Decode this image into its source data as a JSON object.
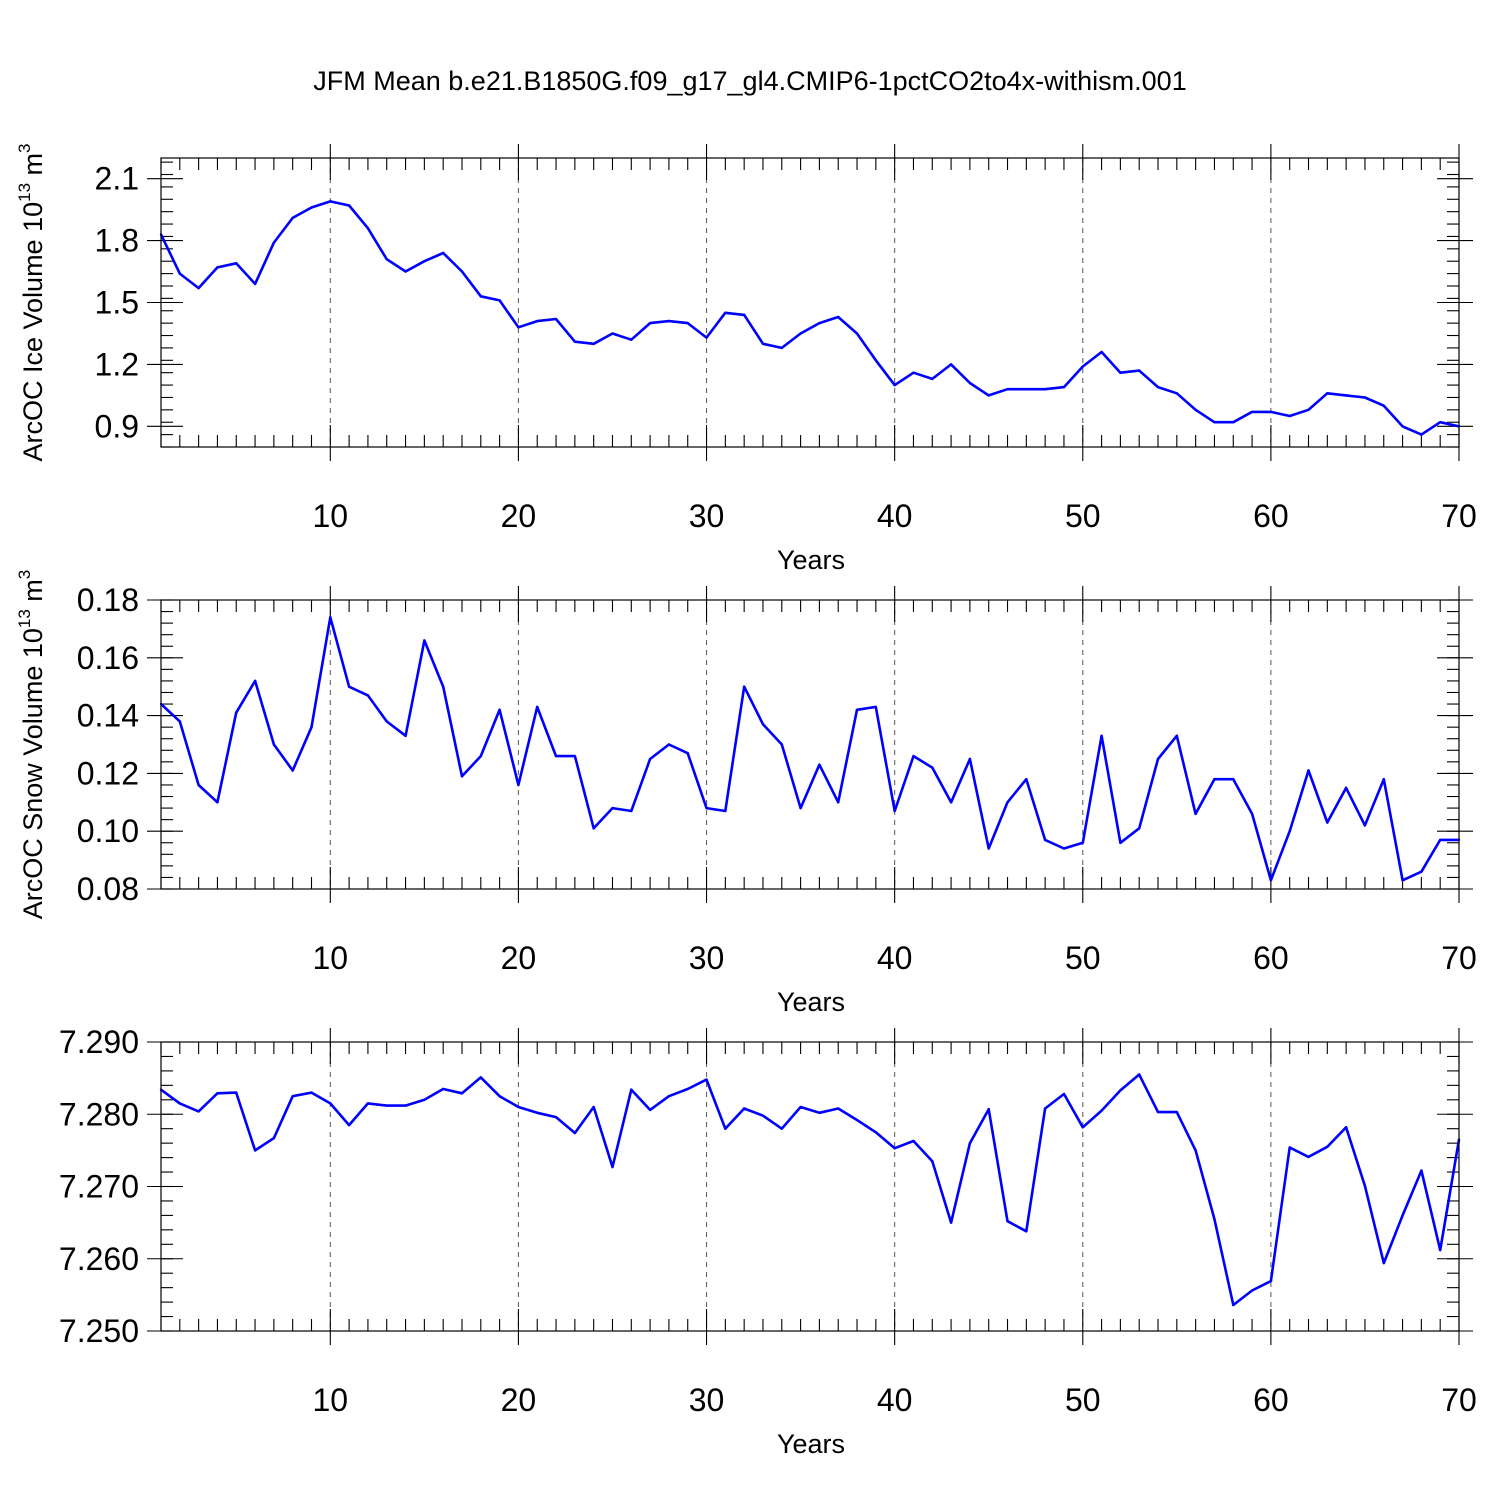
{
  "title": "JFM Mean b.e21.B1850G.f09_g17_gl4.CMIP6-1pctCO2to4x-withism.001",
  "colors": {
    "line": "#0000ff",
    "axis": "#000000",
    "grid": "#666666"
  },
  "chart_data": [
    {
      "type": "line",
      "ylabel": "ArcOC Ice Volume 10^13 m^3",
      "ylabel_parts": {
        "base": "ArcOC Ice Volume 10",
        "exp1": "13",
        "mid": " m",
        "exp2": "3"
      },
      "xlabel": "Years",
      "xlim": [
        1,
        70
      ],
      "ylim": [
        0.8,
        2.2
      ],
      "xticks": [
        10,
        20,
        30,
        40,
        50,
        60,
        70
      ],
      "yticks": [
        0.9,
        1.2,
        1.5,
        1.8,
        2.1
      ],
      "ytick_labels": [
        "0.9",
        "1.2",
        "1.5",
        "1.8",
        "2.1"
      ],
      "grid_x": [
        10,
        20,
        30,
        40,
        50,
        60
      ],
      "x": [
        1,
        2,
        3,
        4,
        5,
        6,
        7,
        8,
        9,
        10,
        11,
        12,
        13,
        14,
        15,
        16,
        17,
        18,
        19,
        20,
        21,
        22,
        23,
        24,
        25,
        26,
        27,
        28,
        29,
        30,
        31,
        32,
        33,
        34,
        35,
        36,
        37,
        38,
        39,
        40,
        41,
        42,
        43,
        44,
        45,
        46,
        47,
        48,
        49,
        50,
        51,
        52,
        53,
        54,
        55,
        56,
        57,
        58,
        59,
        60,
        61,
        62,
        63,
        64,
        65,
        66,
        67,
        68,
        69,
        70
      ],
      "y": [
        1.83,
        1.64,
        1.57,
        1.67,
        1.69,
        1.59,
        1.79,
        1.91,
        1.96,
        1.99,
        1.97,
        1.86,
        1.71,
        1.65,
        1.7,
        1.74,
        1.65,
        1.53,
        1.51,
        1.38,
        1.41,
        1.42,
        1.31,
        1.3,
        1.35,
        1.32,
        1.4,
        1.41,
        1.4,
        1.33,
        1.45,
        1.44,
        1.3,
        1.28,
        1.35,
        1.4,
        1.43,
        1.35,
        1.22,
        1.1,
        1.16,
        1.13,
        1.2,
        1.11,
        1.05,
        1.08,
        1.08,
        1.08,
        1.09,
        1.19,
        1.26,
        1.16,
        1.17,
        1.09,
        1.06,
        0.98,
        0.92,
        0.92,
        0.97,
        0.97,
        0.95,
        0.98,
        1.06,
        1.05,
        1.04,
        1.0,
        0.9,
        0.86,
        0.92,
        0.9
      ]
    },
    {
      "type": "line",
      "ylabel": "ArcOC Snow Volume 10^13 m^3",
      "ylabel_parts": {
        "base": "ArcOC Snow Volume 10",
        "exp1": "13",
        "mid": " m",
        "exp2": "3"
      },
      "xlabel": "Years",
      "xlim": [
        1,
        70
      ],
      "ylim": [
        0.08,
        0.18
      ],
      "xticks": [
        10,
        20,
        30,
        40,
        50,
        60,
        70
      ],
      "yticks": [
        0.08,
        0.1,
        0.12,
        0.14,
        0.16,
        0.18
      ],
      "ytick_labels": [
        "0.08",
        "0.10",
        "0.12",
        "0.14",
        "0.16",
        "0.18"
      ],
      "grid_x": [
        10,
        20,
        30,
        40,
        50,
        60
      ],
      "x": [
        1,
        2,
        3,
        4,
        5,
        6,
        7,
        8,
        9,
        10,
        11,
        12,
        13,
        14,
        15,
        16,
        17,
        18,
        19,
        20,
        21,
        22,
        23,
        24,
        25,
        26,
        27,
        28,
        29,
        30,
        31,
        32,
        33,
        34,
        35,
        36,
        37,
        38,
        39,
        40,
        41,
        42,
        43,
        44,
        45,
        46,
        47,
        48,
        49,
        50,
        51,
        52,
        53,
        54,
        55,
        56,
        57,
        58,
        59,
        60,
        61,
        62,
        63,
        64,
        65,
        66,
        67,
        68,
        69,
        70
      ],
      "y": [
        0.144,
        0.138,
        0.116,
        0.11,
        0.141,
        0.152,
        0.13,
        0.121,
        0.136,
        0.174,
        0.15,
        0.147,
        0.138,
        0.133,
        0.166,
        0.15,
        0.119,
        0.126,
        0.142,
        0.116,
        0.143,
        0.126,
        0.126,
        0.101,
        0.108,
        0.107,
        0.125,
        0.13,
        0.127,
        0.108,
        0.107,
        0.15,
        0.137,
        0.13,
        0.108,
        0.123,
        0.11,
        0.142,
        0.143,
        0.107,
        0.126,
        0.122,
        0.11,
        0.125,
        0.094,
        0.11,
        0.118,
        0.097,
        0.094,
        0.096,
        0.133,
        0.096,
        0.101,
        0.125,
        0.133,
        0.106,
        0.118,
        0.118,
        0.106,
        0.083,
        0.1,
        0.121,
        0.103,
        0.115,
        0.102,
        0.118,
        0.083,
        0.086,
        0.097,
        0.097
      ]
    },
    {
      "type": "line",
      "ylabel": "",
      "xlabel": "Years",
      "xlim": [
        1,
        70
      ],
      "ylim": [
        7.25,
        7.29
      ],
      "xticks": [
        10,
        20,
        30,
        40,
        50,
        60,
        70
      ],
      "yticks": [
        7.25,
        7.26,
        7.27,
        7.28,
        7.29
      ],
      "ytick_labels": [
        "7.250",
        "7.260",
        "7.270",
        "7.280",
        "7.290"
      ],
      "grid_x": [
        10,
        20,
        30,
        40,
        50,
        60
      ],
      "x": [
        1,
        2,
        3,
        4,
        5,
        6,
        7,
        8,
        9,
        10,
        11,
        12,
        13,
        14,
        15,
        16,
        17,
        18,
        19,
        20,
        21,
        22,
        23,
        24,
        25,
        26,
        27,
        28,
        29,
        30,
        31,
        32,
        33,
        34,
        35,
        36,
        37,
        38,
        39,
        40,
        41,
        42,
        43,
        44,
        45,
        46,
        47,
        48,
        49,
        50,
        51,
        52,
        53,
        54,
        55,
        56,
        57,
        58,
        59,
        60,
        61,
        62,
        63,
        64,
        65,
        66,
        67,
        68,
        69,
        70
      ],
      "y": [
        7.2834,
        7.2815,
        7.2804,
        7.2829,
        7.283,
        7.275,
        7.2767,
        7.2825,
        7.283,
        7.2815,
        7.2785,
        7.2815,
        7.2812,
        7.2812,
        7.282,
        7.2835,
        7.2829,
        7.2851,
        7.2825,
        7.281,
        7.2802,
        7.2796,
        7.2774,
        7.281,
        7.2727,
        7.2834,
        7.2806,
        7.2825,
        7.2835,
        7.2848,
        7.278,
        7.2808,
        7.2798,
        7.278,
        7.281,
        7.2802,
        7.2808,
        7.2792,
        7.2775,
        7.2753,
        7.2763,
        7.2735,
        7.265,
        7.276,
        7.2807,
        7.2652,
        7.2638,
        7.2808,
        7.2828,
        7.2782,
        7.2805,
        7.2833,
        7.2855,
        7.2803,
        7.2803,
        7.275,
        7.2655,
        7.2536,
        7.2556,
        7.2569,
        7.2754,
        7.2741,
        7.2755,
        7.2782,
        7.2701,
        7.2594,
        7.266,
        7.2722,
        7.2612,
        7.2765
      ]
    }
  ]
}
